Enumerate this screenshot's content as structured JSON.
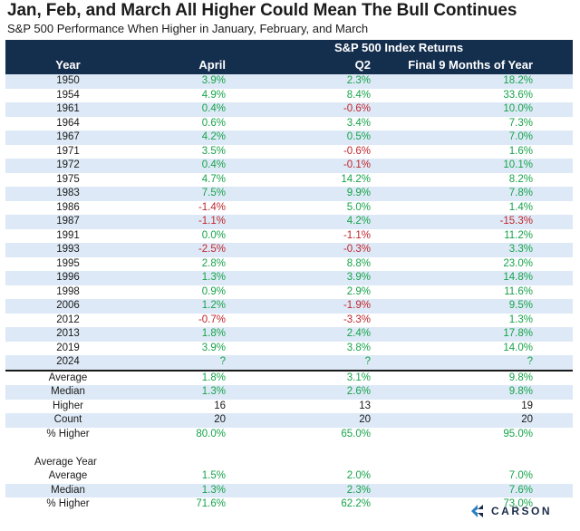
{
  "title": "Jan, Feb, and March All Higher Could Mean The Bull Continues",
  "subtitle": "S&P 500 Performance When Higher in January, February, and March",
  "logo_text": "CARSON",
  "colors": {
    "header_bg": "#142e4e",
    "row_alt": "#dde9f6",
    "positive": "#17a34a",
    "negative": "#c0262d"
  },
  "chart_data": {
    "type": "table",
    "title": "Jan, Feb, and March All Higher Could Mean The Bull Continues",
    "group_header": "S&P 500 Index Returns",
    "columns": [
      "Year",
      "April",
      "Q2",
      "Final 9 Months of Year"
    ],
    "rows": [
      [
        "1950",
        "3.9%",
        "2.3%",
        "18.2%"
      ],
      [
        "1954",
        "4.9%",
        "8.4%",
        "33.6%"
      ],
      [
        "1961",
        "0.4%",
        "-0.6%",
        "10.0%"
      ],
      [
        "1964",
        "0.6%",
        "3.4%",
        "7.3%"
      ],
      [
        "1967",
        "4.2%",
        "0.5%",
        "7.0%"
      ],
      [
        "1971",
        "3.5%",
        "-0.6%",
        "1.6%"
      ],
      [
        "1972",
        "0.4%",
        "-0.1%",
        "10.1%"
      ],
      [
        "1975",
        "4.7%",
        "14.2%",
        "8.2%"
      ],
      [
        "1983",
        "7.5%",
        "9.9%",
        "7.8%"
      ],
      [
        "1986",
        "-1.4%",
        "5.0%",
        "1.4%"
      ],
      [
        "1987",
        "-1.1%",
        "4.2%",
        "-15.3%"
      ],
      [
        "1991",
        "0.0%",
        "-1.1%",
        "11.2%"
      ],
      [
        "1993",
        "-2.5%",
        "-0.3%",
        "3.3%"
      ],
      [
        "1995",
        "2.8%",
        "8.8%",
        "23.0%"
      ],
      [
        "1996",
        "1.3%",
        "3.9%",
        "14.8%"
      ],
      [
        "1998",
        "0.9%",
        "2.9%",
        "11.6%"
      ],
      [
        "2006",
        "1.2%",
        "-1.9%",
        "9.5%"
      ],
      [
        "2012",
        "-0.7%",
        "-3.3%",
        "1.3%"
      ],
      [
        "2013",
        "1.8%",
        "2.4%",
        "17.8%"
      ],
      [
        "2019",
        "3.9%",
        "3.8%",
        "14.0%"
      ],
      [
        "2024",
        "?",
        "?",
        "?"
      ]
    ],
    "stats": [
      [
        "Average",
        "1.8%",
        "3.1%",
        "9.8%"
      ],
      [
        "Median",
        "1.3%",
        "2.6%",
        "9.8%"
      ],
      [
        "Higher",
        "16",
        "13",
        "19"
      ],
      [
        "Count",
        "20",
        "20",
        "20"
      ],
      [
        "% Higher",
        "80.0%",
        "65.0%",
        "95.0%"
      ]
    ],
    "average_year_label": "Average Year",
    "average_year": [
      [
        "Average",
        "1.5%",
        "2.0%",
        "7.0%"
      ],
      [
        "Median",
        "1.3%",
        "2.3%",
        "7.6%"
      ],
      [
        "% Higher",
        "71.6%",
        "62.2%",
        "73.0%"
      ]
    ]
  }
}
